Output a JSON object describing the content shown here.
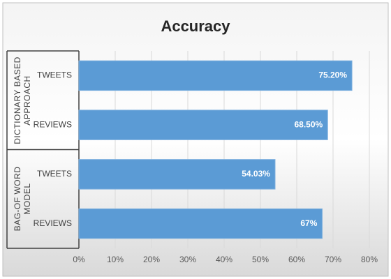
{
  "chart_data": {
    "type": "bar",
    "orientation": "horizontal",
    "title": "Accuracy",
    "groups": [
      {
        "name": "DICTIONARY BASED APPROACH",
        "categories": [
          "TWEETS",
          "REVIEWS"
        ],
        "values": [
          75.2,
          68.5
        ],
        "value_labels": [
          "75.20%",
          "68.50%"
        ]
      },
      {
        "name": "BAG-OF WORD MODEL",
        "categories": [
          "TWEETS",
          "REVIEWS"
        ],
        "values": [
          54.03,
          67
        ],
        "value_labels": [
          "54.03%",
          "67%"
        ]
      }
    ],
    "color": "#5b9bd5",
    "xlim": [
      0,
      80
    ],
    "xticks": [
      {
        "value": 0,
        "label": "0%"
      },
      {
        "value": 10,
        "label": "10%"
      },
      {
        "value": 20,
        "label": "20%"
      },
      {
        "value": 30,
        "label": "30%"
      },
      {
        "value": 40,
        "label": "40%"
      },
      {
        "value": 50,
        "label": "50%"
      },
      {
        "value": 60,
        "label": "60%"
      },
      {
        "value": 70,
        "label": "70%"
      },
      {
        "value": 80,
        "label": "80%"
      }
    ],
    "grid": true
  }
}
